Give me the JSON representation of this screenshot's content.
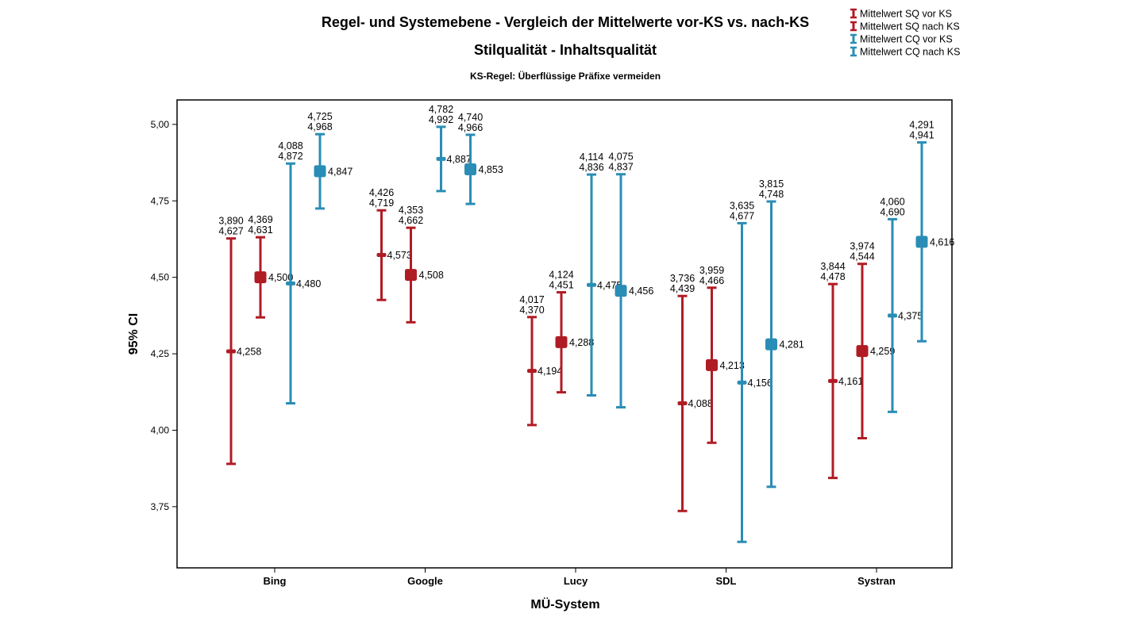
{
  "chart_data": {
    "type": "errorbar",
    "title": "Regel- und Systemebene - Vergleich der Mittelwerte vor-KS vs. nach-KS",
    "subtitle": "Stilqualität - Inhaltsqualität",
    "subtitle2": "KS-Regel: Überflüssige Präfixe vermeiden",
    "xlabel": "MÜ-System",
    "ylabel": "95% CI",
    "ylim": [
      3.55,
      5.08
    ],
    "yticks": [
      "3,75",
      "4,00",
      "4,25",
      "4,50",
      "4,75",
      "5,00"
    ],
    "ytick_values": [
      3.75,
      4.0,
      4.25,
      4.5,
      4.75,
      5.0
    ],
    "categories": [
      "Bing",
      "Google",
      "Lucy",
      "SDL",
      "Systran"
    ],
    "legend_position": "top-right",
    "series": [
      {
        "name": "Mittelwert SQ vor KS",
        "color": "#b01c24",
        "marker": "small",
        "points": [
          {
            "mean": 4.258,
            "low": 3.89,
            "high": 4.627,
            "mean_label": "4,258",
            "low_label": "3,890",
            "high_label": "4,627"
          },
          {
            "mean": 4.573,
            "low": 4.426,
            "high": 4.719,
            "mean_label": "4,573",
            "low_label": "4,426",
            "high_label": "4,719"
          },
          {
            "mean": 4.194,
            "low": 4.017,
            "high": 4.37,
            "mean_label": "4,194",
            "low_label": "4,017",
            "high_label": "4,370"
          },
          {
            "mean": 4.088,
            "low": 3.736,
            "high": 4.439,
            "mean_label": "4,088",
            "low_label": "3,736",
            "high_label": "4,439"
          },
          {
            "mean": 4.161,
            "low": 3.844,
            "high": 4.478,
            "mean_label": "4,161",
            "low_label": "3,844",
            "high_label": "4,478"
          }
        ]
      },
      {
        "name": "Mittelwert SQ nach KS",
        "color": "#b01c24",
        "marker": "large",
        "points": [
          {
            "mean": 4.5,
            "low": 4.369,
            "high": 4.631,
            "mean_label": "4,500",
            "low_label": "4,369",
            "high_label": "4,631"
          },
          {
            "mean": 4.508,
            "low": 4.353,
            "high": 4.662,
            "mean_label": "4,508",
            "low_label": "4,353",
            "high_label": "4,662"
          },
          {
            "mean": 4.288,
            "low": 4.124,
            "high": 4.451,
            "mean_label": "4,288",
            "low_label": "4,124",
            "high_label": "4,451"
          },
          {
            "mean": 4.213,
            "low": 3.959,
            "high": 4.466,
            "mean_label": "4,213",
            "low_label": "3,959",
            "high_label": "4,466"
          },
          {
            "mean": 4.259,
            "low": 3.974,
            "high": 4.544,
            "mean_label": "4,259",
            "low_label": "3,974",
            "high_label": "4,544"
          }
        ]
      },
      {
        "name": "Mittelwert CQ vor KS",
        "color": "#2a8db5",
        "marker": "small",
        "points": [
          {
            "mean": 4.48,
            "low": 4.088,
            "high": 4.872,
            "mean_label": "4,480",
            "low_label": "4,088",
            "high_label": "4,872"
          },
          {
            "mean": 4.887,
            "low": 4.782,
            "high": 4.992,
            "mean_label": "4,887",
            "low_label": "4,782",
            "high_label": "4,992"
          },
          {
            "mean": 4.475,
            "low": 4.114,
            "high": 4.836,
            "mean_label": "4,475",
            "low_label": "4,114",
            "high_label": "4,836"
          },
          {
            "mean": 4.156,
            "low": 3.635,
            "high": 4.677,
            "mean_label": "4,156",
            "low_label": "3,635",
            "high_label": "4,677"
          },
          {
            "mean": 4.375,
            "low": 4.06,
            "high": 4.69,
            "mean_label": "4,375",
            "low_label": "4,060",
            "high_label": "4,690"
          }
        ]
      },
      {
        "name": "Mittelwert CQ nach KS",
        "color": "#2a8db5",
        "marker": "large",
        "points": [
          {
            "mean": 4.847,
            "low": 4.725,
            "high": 4.968,
            "mean_label": "4,847",
            "low_label": "4,725",
            "high_label": "4,968"
          },
          {
            "mean": 4.853,
            "low": 4.74,
            "high": 4.966,
            "mean_label": "4,853",
            "low_label": "4,740",
            "high_label": "4,966"
          },
          {
            "mean": 4.456,
            "low": 4.075,
            "high": 4.837,
            "mean_label": "4,456",
            "low_label": "4,075",
            "high_label": "4,837"
          },
          {
            "mean": 4.281,
            "low": 3.815,
            "high": 4.748,
            "mean_label": "4,281",
            "low_label": "3,815",
            "high_label": "4,748"
          },
          {
            "mean": 4.616,
            "low": 4.291,
            "high": 4.941,
            "mean_label": "4,616",
            "low_label": "4,291",
            "high_label": "4,941"
          }
        ]
      }
    ]
  }
}
